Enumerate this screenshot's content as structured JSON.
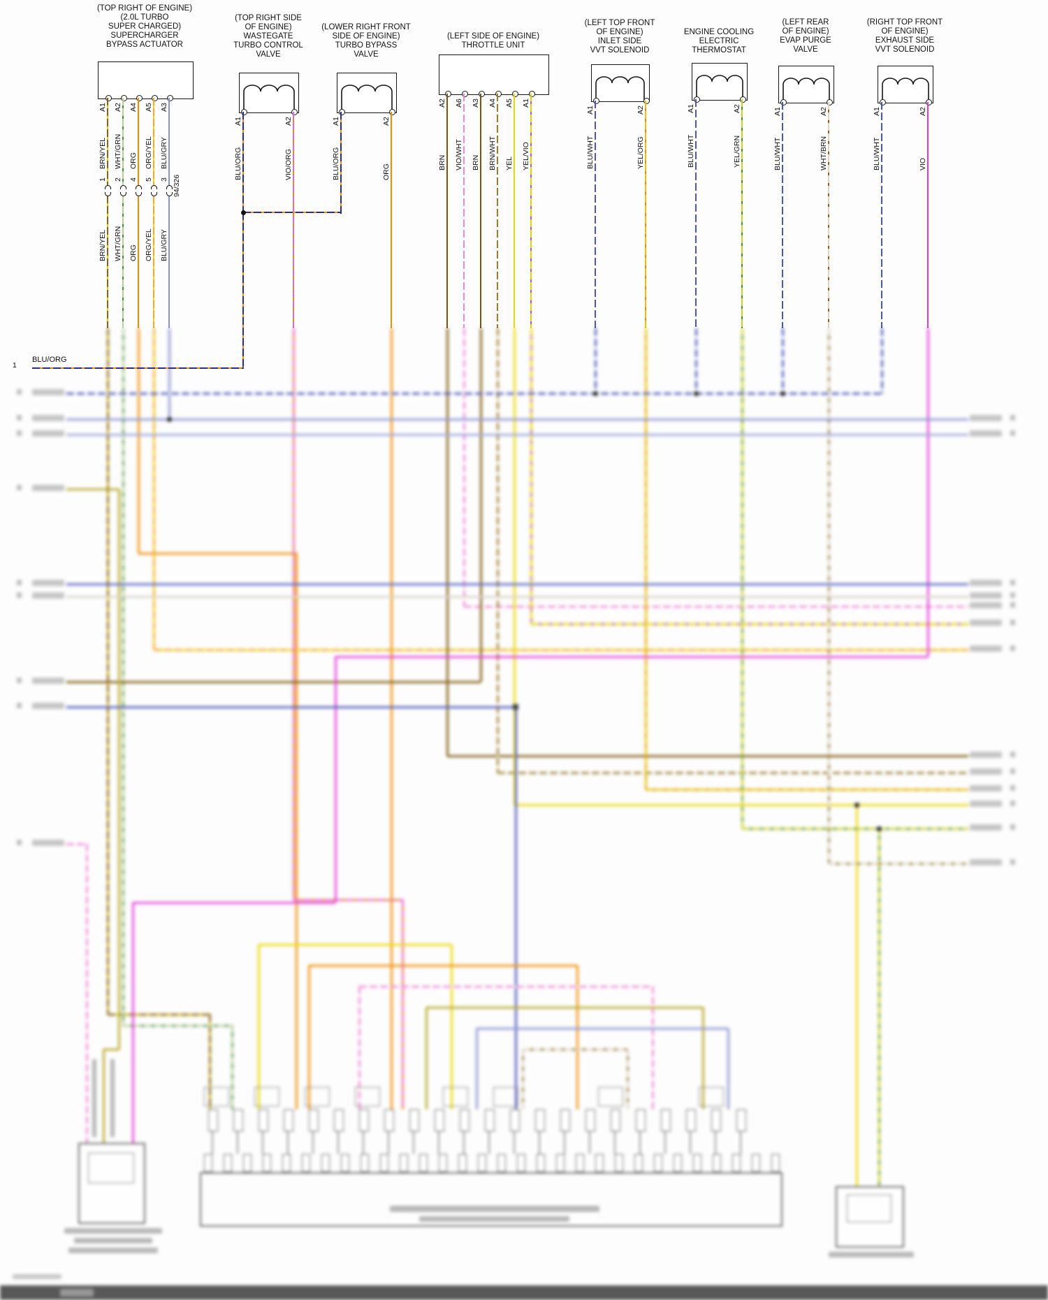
{
  "left_ref": {
    "num": "1",
    "label": "BLU/ORG"
  },
  "components": [
    {
      "id": "supercharger-bypass-actuator",
      "location": [
        "(TOP RIGHT OF ENGINE)",
        "(2.0L TURBO",
        "SUPER CHARGED)",
        "SUPERCHARGER",
        "BYPASS ACTUATOR"
      ],
      "pins": [
        "A1",
        "A2",
        "A4",
        "A5",
        "A3"
      ],
      "wires": [
        "BRN/YEL",
        "WHT/GRN",
        "ORG",
        "ORG/YEL",
        "BLU/GRY"
      ],
      "connector_pins": [
        "1",
        "2",
        "4",
        "5",
        "3"
      ],
      "connector_label": "94/326",
      "wires_below": [
        "BRN/YEL",
        "WHT/GRN",
        "ORG",
        "ORG/YEL",
        "BLU/GRY"
      ]
    },
    {
      "id": "wastegate-turbo-control-valve",
      "location": [
        "(TOP RIGHT SIDE",
        "OF ENGINE)",
        "WASTEGATE",
        "TURBO CONTROL",
        "VALVE"
      ],
      "pins": [
        "A1",
        "A2"
      ],
      "wires": [
        "BLU/ORG",
        "VIO/ORG"
      ]
    },
    {
      "id": "turbo-bypass-valve",
      "location": [
        "(LOWER RIGHT FRONT",
        "SIDE OF ENGINE)",
        "TURBO BYPASS",
        "VALVE"
      ],
      "pins": [
        "A1",
        "A2"
      ],
      "wires": [
        "BLU/ORG",
        "ORG"
      ]
    },
    {
      "id": "throttle-unit",
      "location": [
        "(LEFT SIDE OF ENGINE)",
        "THROTTLE UNIT"
      ],
      "pins": [
        "A2",
        "A6",
        "A3",
        "A4",
        "A5",
        "A1"
      ],
      "wires": [
        "BRN",
        "VIO/WHT",
        "BRN",
        "BRN/WHT",
        "YEL",
        "YEL/VIO"
      ]
    },
    {
      "id": "inlet-side-vvt-solenoid",
      "location": [
        "(LEFT TOP FRONT",
        "OF ENGINE)",
        "INLET SIDE",
        "VVT SOLENOID"
      ],
      "pins": [
        "A1",
        "A2"
      ],
      "wires": [
        "BLU/WHT",
        "YEL/ORG"
      ]
    },
    {
      "id": "engine-cooling-electric-thermostat",
      "location": [
        "ENGINE COOLING",
        "ELECTRIC",
        "THERMOSTAT"
      ],
      "pins": [
        "A1",
        "A2"
      ],
      "wires": [
        "BLU/WHT",
        "YEL/GRN"
      ]
    },
    {
      "id": "evap-purge-valve",
      "location": [
        "(LEFT REAR",
        "OF ENGINE)",
        "EVAP PURGE",
        "VALVE"
      ],
      "pins": [
        "A1",
        "A2"
      ],
      "wires": [
        "BLU/WHT",
        "WHT/BRN"
      ]
    },
    {
      "id": "exhaust-side-vvt-solenoid",
      "location": [
        "(RIGHT TOP FRONT",
        "OF ENGINE)",
        "EXHAUST SIDE",
        "VVT SOLENOID"
      ],
      "pins": [
        "A1",
        "A2"
      ],
      "wires": [
        "BLU/WHT",
        "VIO"
      ]
    }
  ],
  "palette": {
    "BRN/YEL": {
      "main": "#8a6414",
      "stripe": "#e0cc00"
    },
    "WHT/GRN": {
      "main": "#b9d09a",
      "stripe": "#3f8f3f"
    },
    "ORG": {
      "main": "#f08c00"
    },
    "ORG/YEL": {
      "main": "#f2aa28",
      "stripe": "#f0e000"
    },
    "BLU/GRY": {
      "main": "#8893cf"
    },
    "BLU/GRY2": {
      "main": "#9aa4d8"
    },
    "BLU/ORG": {
      "main": "#2a2a90",
      "stripe": "#f08c00"
    },
    "VIO/ORG": {
      "main": "#e868c8",
      "stripe": "#f08c00"
    },
    "BRN": {
      "main": "#7a5408"
    },
    "VIO/WHT": {
      "main": "#ee8ad8",
      "stripe": "#ffffff"
    },
    "BRN/WHT": {
      "main": "#9c7c2c",
      "stripe": "#ffffff"
    },
    "YEL": {
      "main": "#ecd800"
    },
    "YEL/VIO": {
      "main": "#e6d400",
      "stripe": "#c050d0"
    },
    "BLU/WHT": {
      "main": "#4a55b8",
      "stripe": "#ffffff"
    },
    "BLU/WHT2": {
      "main": "#5a64c4"
    },
    "BLU2": {
      "main": "#4a55b8"
    },
    "YEL/ORG": {
      "main": "#e2c600",
      "stripe": "#f08c00"
    },
    "YEL/GRN": {
      "main": "#ccd02a",
      "stripe": "#3f8f3f"
    },
    "WHT/BRN": {
      "main": "#ddd5c2",
      "stripe": "#8a6414"
    },
    "WHT": {
      "main": "#d8d2c6"
    },
    "VIO": {
      "main": "#e23ad8"
    },
    "MUSTARD": {
      "main": "#b8a422"
    },
    "GRAY": {
      "main": "#9a9a9a"
    }
  }
}
